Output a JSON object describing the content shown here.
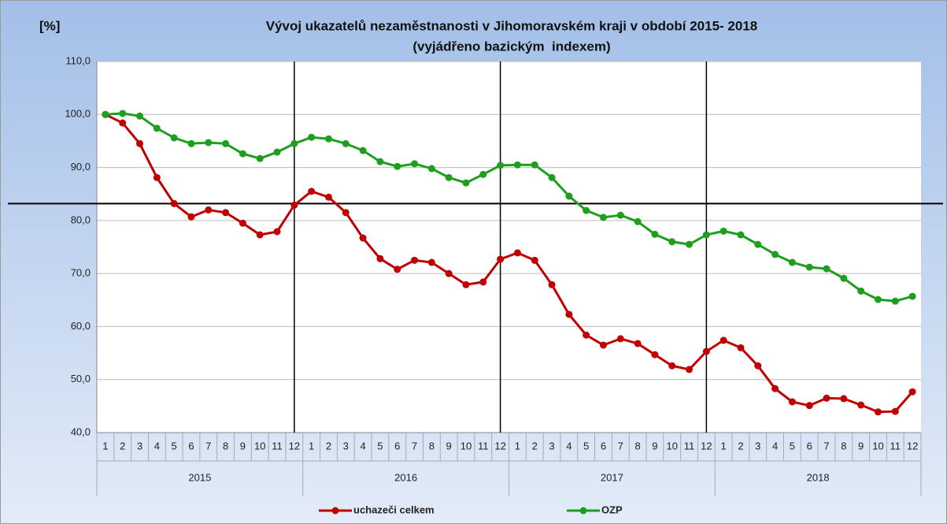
{
  "chart_data": {
    "type": "line",
    "title": "Vývoj ukazatelů nezaměstnanosti v Jihomoravském kraji v období 2015- 2018",
    "subtitle": "(vyjádřeno bazickým  indexem)",
    "y_label": "[%]",
    "categories": [
      "1",
      "2",
      "3",
      "4",
      "5",
      "6",
      "7",
      "8",
      "9",
      "10",
      "11",
      "12",
      "1",
      "2",
      "3",
      "4",
      "5",
      "6",
      "7",
      "8",
      "9",
      "10",
      "11",
      "12",
      "1",
      "2",
      "3",
      "4",
      "5",
      "6",
      "7",
      "8",
      "9",
      "10",
      "11",
      "12",
      "1",
      "2",
      "3",
      "4",
      "5",
      "6",
      "7",
      "8",
      "9",
      "10",
      "11",
      "12"
    ],
    "year_groups": [
      "2015",
      "2016",
      "2017",
      "2018"
    ],
    "series": [
      {
        "name": "uchazeči celkem",
        "color": "#c00000",
        "values": [
          100,
          98.4,
          94.5,
          88.1,
          83.2,
          80.7,
          82.0,
          81.5,
          79.5,
          77.3,
          77.9,
          82.9,
          85.5,
          84.4,
          81.5,
          76.7,
          72.8,
          70.8,
          72.5,
          72.1,
          70.0,
          67.9,
          68.4,
          72.7,
          73.9,
          72.5,
          67.9,
          62.3,
          58.4,
          56.5,
          57.7,
          56.8,
          54.7,
          52.6,
          51.9,
          55.3,
          57.4,
          56.0,
          52.6,
          48.3,
          45.8,
          45.1,
          46.5,
          46.4,
          45.2,
          43.9,
          44.0,
          47.7
        ]
      },
      {
        "name": "OZP",
        "color": "#1e9e1e",
        "values": [
          100,
          100.2,
          99.7,
          97.4,
          95.6,
          94.5,
          94.7,
          94.5,
          92.6,
          91.7,
          92.9,
          94.5,
          95.7,
          95.4,
          94.5,
          93.2,
          91.1,
          90.2,
          90.7,
          89.8,
          88.1,
          87.1,
          88.7,
          90.4,
          90.5,
          90.5,
          88.1,
          84.6,
          81.9,
          80.6,
          81.0,
          79.8,
          77.4,
          76.0,
          75.5,
          77.3,
          78.0,
          77.3,
          75.5,
          73.6,
          72.1,
          71.2,
          70.9,
          69.1,
          66.7,
          65.1,
          64.8,
          65.7
        ]
      }
    ],
    "reference_line": 83.2,
    "ylim": [
      40,
      110
    ],
    "yticks": [
      {
        "value": 40,
        "label": "40,0"
      },
      {
        "value": 50,
        "label": "50,0"
      },
      {
        "value": 60,
        "label": "60,0"
      },
      {
        "value": 70,
        "label": "70,0"
      },
      {
        "value": 80,
        "label": "80,0"
      },
      {
        "value": 90,
        "label": "90,0"
      },
      {
        "value": 100,
        "label": "100,0"
      },
      {
        "value": 110,
        "label": "110,0"
      }
    ],
    "grid": true,
    "legend": "bottom"
  }
}
